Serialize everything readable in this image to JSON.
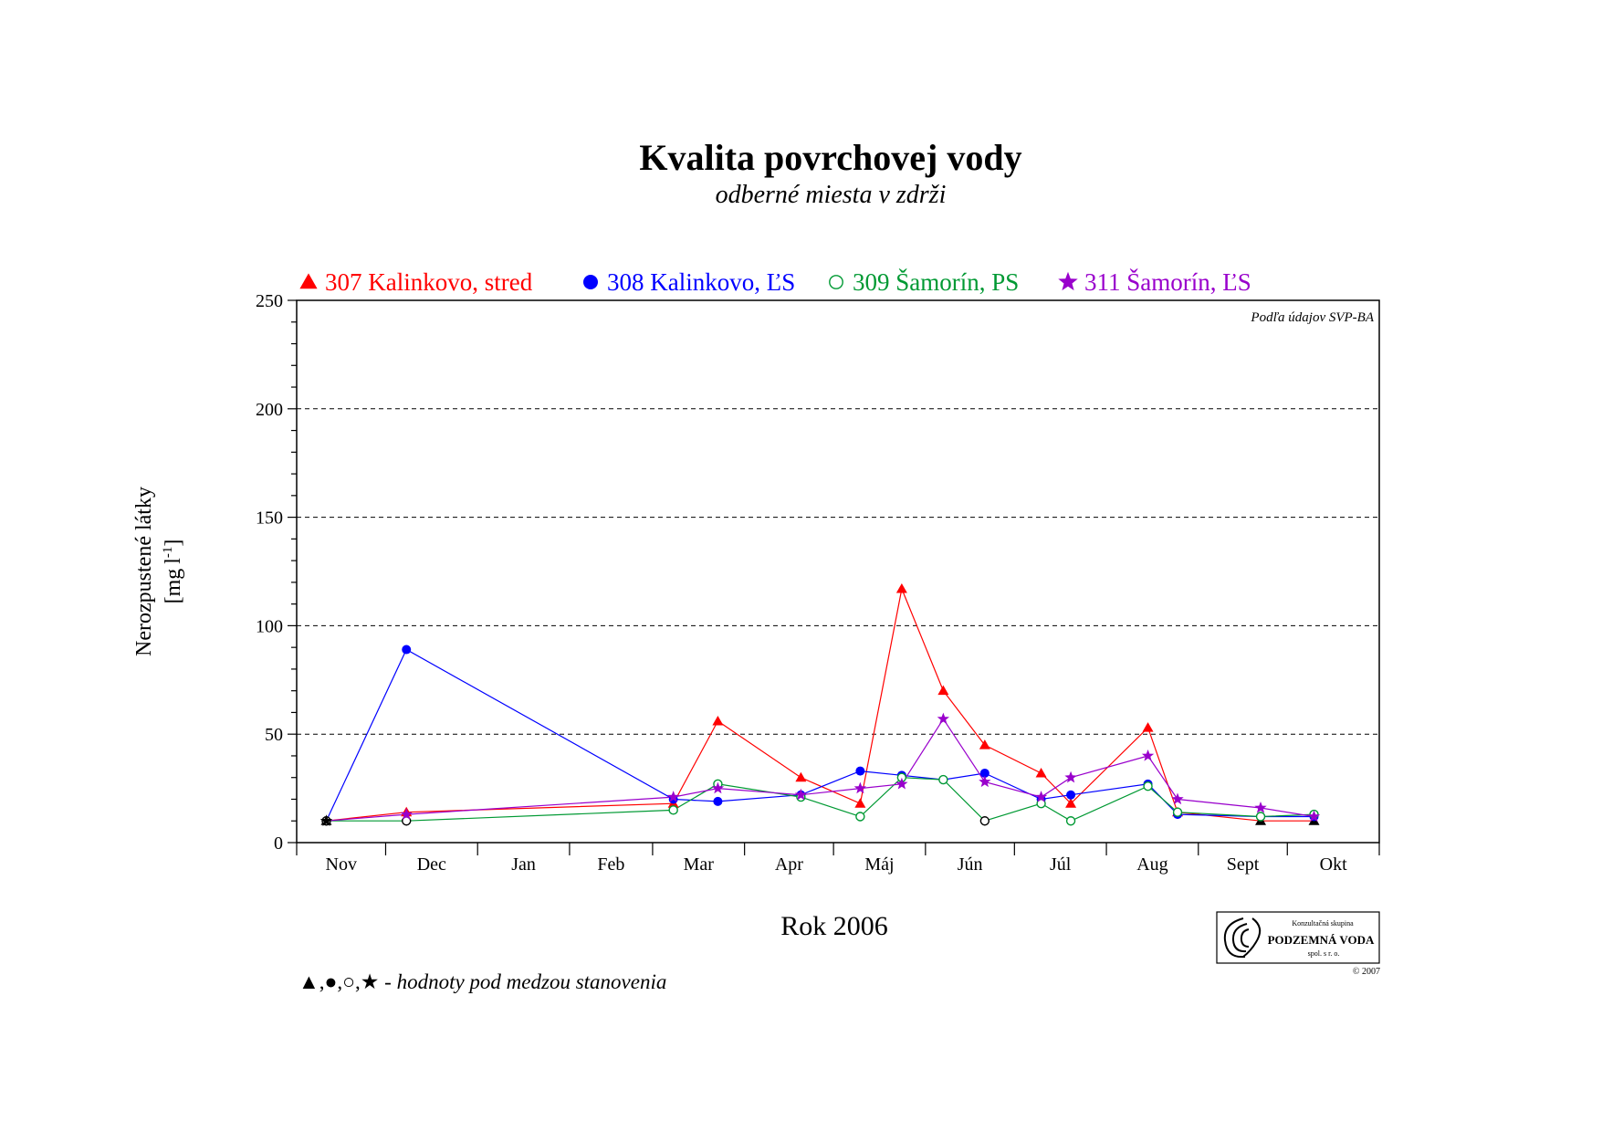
{
  "chart_data": {
    "type": "line",
    "title": "Kvalita povrchovej vody",
    "subtitle": "odberné miesta v zdrži",
    "ylabel": "Nerozpustené látky",
    "yunit": "[mg l-1]",
    "yunit_main": "[mg",
    "yunit_sup": "l",
    "yunit_exp": "-1",
    "yunit_close": "]",
    "xlabel": "Rok 2006",
    "ylim": [
      0,
      250
    ],
    "y_ticks": [
      0,
      50,
      100,
      150,
      200,
      250
    ],
    "y_tick_labels": [
      "0",
      "50",
      "100",
      "150",
      "200",
      "250"
    ],
    "grid": "dashed horizontal at 50, 100, 150, 200",
    "x_range": [
      "2005-11-01",
      "2006-11-01"
    ],
    "month_labels": [
      "Nov",
      "Dec",
      "Jan",
      "Feb",
      "Mar",
      "Apr",
      "Máj",
      "Jún",
      "Júl",
      "Aug",
      "Sept",
      "Okt"
    ],
    "source_note": "Podľa údajov SVP-BA",
    "footnote_symbols": "▲,●,○,★",
    "footnote_text": " - hodnoty pod medzou stanovenia",
    "legend_position": "top",
    "series": [
      {
        "name": "307 Kalinkovo, stred",
        "color": "#ff0000",
        "marker": "triangle",
        "points": [
          {
            "date": "2005-11-11",
            "value": 10,
            "bdl": true
          },
          {
            "date": "2005-12-08",
            "value": 14,
            "bdl": false
          },
          {
            "date": "2006-03-08",
            "value": 18,
            "bdl": false
          },
          {
            "date": "2006-03-23",
            "value": 56,
            "bdl": false
          },
          {
            "date": "2006-04-20",
            "value": 30,
            "bdl": false
          },
          {
            "date": "2006-05-10",
            "value": 18,
            "bdl": false
          },
          {
            "date": "2006-05-24",
            "value": 117,
            "bdl": false
          },
          {
            "date": "2006-06-07",
            "value": 70,
            "bdl": false
          },
          {
            "date": "2006-06-21",
            "value": 45,
            "bdl": false
          },
          {
            "date": "2006-07-10",
            "value": 32,
            "bdl": false
          },
          {
            "date": "2006-07-20",
            "value": 18,
            "bdl": false
          },
          {
            "date": "2006-08-15",
            "value": 53,
            "bdl": false
          },
          {
            "date": "2006-08-25",
            "value": 14,
            "bdl": false
          },
          {
            "date": "2006-09-22",
            "value": 10,
            "bdl": true
          },
          {
            "date": "2006-10-10",
            "value": 10,
            "bdl": true
          }
        ]
      },
      {
        "name": "308 Kalinkovo, ĽS",
        "color": "#0000ff",
        "marker": "circle",
        "points": [
          {
            "date": "2005-11-11",
            "value": 10,
            "bdl": true
          },
          {
            "date": "2005-12-08",
            "value": 89,
            "bdl": false
          },
          {
            "date": "2006-03-08",
            "value": 20,
            "bdl": false
          },
          {
            "date": "2006-03-23",
            "value": 19,
            "bdl": false
          },
          {
            "date": "2006-04-20",
            "value": 22,
            "bdl": false
          },
          {
            "date": "2006-05-10",
            "value": 33,
            "bdl": false
          },
          {
            "date": "2006-05-24",
            "value": 31,
            "bdl": false
          },
          {
            "date": "2006-06-07",
            "value": 29,
            "bdl": false
          },
          {
            "date": "2006-06-21",
            "value": 32,
            "bdl": false
          },
          {
            "date": "2006-07-10",
            "value": 20,
            "bdl": false
          },
          {
            "date": "2006-07-20",
            "value": 22,
            "bdl": false
          },
          {
            "date": "2006-08-15",
            "value": 27,
            "bdl": false
          },
          {
            "date": "2006-08-25",
            "value": 13,
            "bdl": false
          },
          {
            "date": "2006-09-22",
            "value": 12,
            "bdl": false
          },
          {
            "date": "2006-10-10",
            "value": 12,
            "bdl": false
          }
        ]
      },
      {
        "name": "309 Šamorín, PS",
        "color": "#009933",
        "marker": "open-circle",
        "points": [
          {
            "date": "2005-11-11",
            "value": 10,
            "bdl": true
          },
          {
            "date": "2005-12-08",
            "value": 10,
            "bdl": true
          },
          {
            "date": "2006-03-08",
            "value": 15,
            "bdl": false
          },
          {
            "date": "2006-03-23",
            "value": 27,
            "bdl": false
          },
          {
            "date": "2006-04-20",
            "value": 21,
            "bdl": false
          },
          {
            "date": "2006-05-10",
            "value": 12,
            "bdl": false
          },
          {
            "date": "2006-05-24",
            "value": 30,
            "bdl": false
          },
          {
            "date": "2006-06-07",
            "value": 29,
            "bdl": false
          },
          {
            "date": "2006-06-21",
            "value": 10,
            "bdl": true
          },
          {
            "date": "2006-07-10",
            "value": 18,
            "bdl": false
          },
          {
            "date": "2006-07-20",
            "value": 10,
            "bdl": false
          },
          {
            "date": "2006-08-15",
            "value": 26,
            "bdl": false
          },
          {
            "date": "2006-08-25",
            "value": 14,
            "bdl": false
          },
          {
            "date": "2006-09-22",
            "value": 12,
            "bdl": false
          },
          {
            "date": "2006-10-10",
            "value": 13,
            "bdl": false
          }
        ]
      },
      {
        "name": "311 Šamorín, ĽS",
        "color": "#9900cc",
        "marker": "star",
        "points": [
          {
            "date": "2005-11-11",
            "value": 10,
            "bdl": true
          },
          {
            "date": "2005-12-08",
            "value": 13,
            "bdl": false
          },
          {
            "date": "2006-03-08",
            "value": 21,
            "bdl": false
          },
          {
            "date": "2006-03-23",
            "value": 25,
            "bdl": false
          },
          {
            "date": "2006-04-20",
            "value": 22,
            "bdl": false
          },
          {
            "date": "2006-05-10",
            "value": 25,
            "bdl": false
          },
          {
            "date": "2006-05-24",
            "value": 27,
            "bdl": false
          },
          {
            "date": "2006-06-07",
            "value": 57,
            "bdl": false
          },
          {
            "date": "2006-06-21",
            "value": 28,
            "bdl": false
          },
          {
            "date": "2006-07-10",
            "value": 21,
            "bdl": false
          },
          {
            "date": "2006-07-20",
            "value": 30,
            "bdl": false
          },
          {
            "date": "2006-08-15",
            "value": 40,
            "bdl": false
          },
          {
            "date": "2006-08-25",
            "value": 20,
            "bdl": false
          },
          {
            "date": "2006-09-22",
            "value": 16,
            "bdl": false
          },
          {
            "date": "2006-10-10",
            "value": 12,
            "bdl": false
          }
        ]
      }
    ]
  },
  "logo": {
    "line1": "Konzultačná skupina",
    "line2": "PODZEMNÁ VODA",
    "line3": "spol. s r. o.",
    "copyright": "© 2007"
  }
}
